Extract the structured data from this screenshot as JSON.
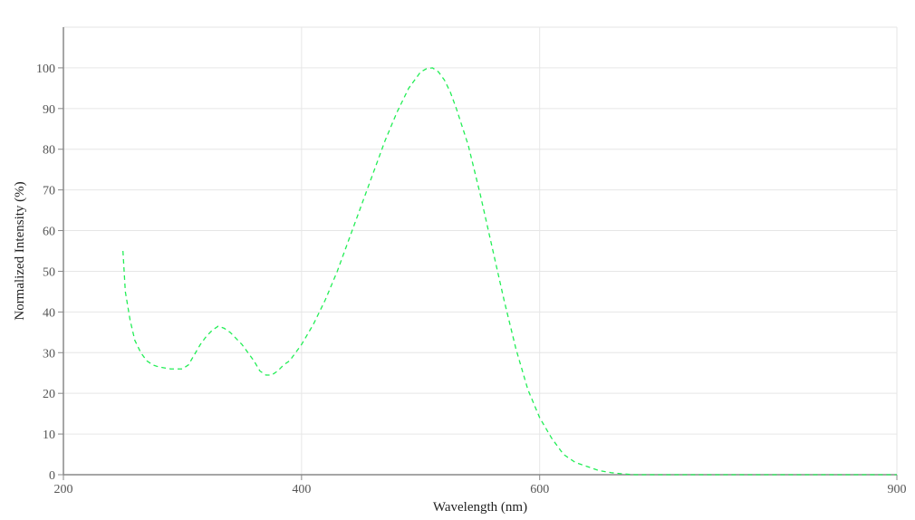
{
  "chart_data": {
    "type": "line",
    "xlabel": "Wavelength (nm)",
    "ylabel": "Normalized Intensity (%)",
    "xlim": [
      200,
      900
    ],
    "ylim": [
      0,
      110
    ],
    "x_ticks": [
      200,
      400,
      600,
      900
    ],
    "y_ticks": [
      0,
      10,
      20,
      30,
      40,
      50,
      60,
      70,
      80,
      90,
      100
    ],
    "grid": true,
    "legend": "none",
    "series": [
      {
        "color": "#22ee55",
        "line_style": "dashed",
        "x": [
          250,
          252,
          256,
          260,
          265,
          270,
          275,
          280,
          290,
          300,
          305,
          310,
          315,
          320,
          325,
          330,
          335,
          340,
          345,
          350,
          355,
          360,
          365,
          370,
          375,
          380,
          385,
          390,
          400,
          410,
          420,
          430,
          440,
          450,
          460,
          470,
          480,
          490,
          500,
          505,
          510,
          515,
          520,
          525,
          530,
          540,
          550,
          560,
          570,
          580,
          590,
          600,
          610,
          620,
          630,
          640,
          650,
          660,
          670,
          680,
          700,
          750,
          800,
          850,
          900
        ],
        "y": [
          55,
          45,
          38,
          33,
          30,
          28,
          27,
          26.5,
          26,
          26,
          27,
          29.5,
          32,
          34,
          35.5,
          36.5,
          36,
          35,
          33.5,
          32,
          30,
          28,
          25.5,
          24.5,
          24.5,
          25.5,
          27,
          28,
          32,
          37,
          43,
          50,
          58,
          66,
          74,
          82,
          89,
          95,
          99,
          99.8,
          100,
          99,
          97,
          94,
          90,
          81,
          69,
          56,
          43,
          31,
          21,
          14,
          9,
          5,
          3,
          2,
          1,
          0.5,
          0.2,
          0,
          0,
          0,
          0,
          0,
          0
        ]
      }
    ]
  }
}
